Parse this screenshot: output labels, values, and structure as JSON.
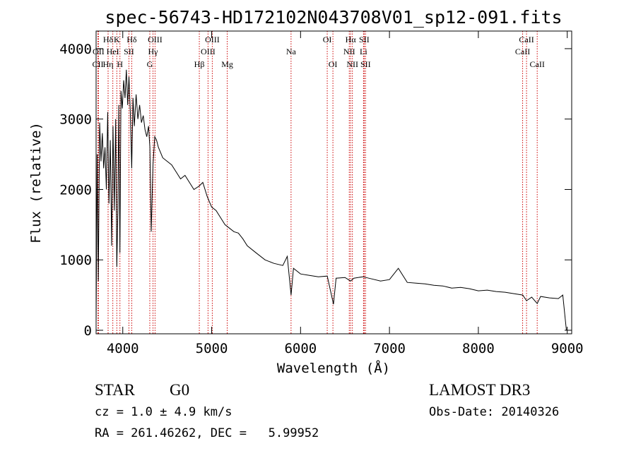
{
  "chart_data": {
    "type": "line",
    "title": "spec-56743-HD172102N043708V01_sp12-091.fits",
    "xlabel": "Wavelength (Å)",
    "ylabel": "Flux (relative)",
    "xlim": [
      3700,
      9050
    ],
    "ylim": [
      -50,
      4250
    ],
    "xticks": [
      4000,
      5000,
      6000,
      7000,
      8000,
      9000
    ],
    "yticks": [
      0,
      1000,
      2000,
      3000,
      4000
    ],
    "grid": false,
    "series": [
      {
        "name": "flux",
        "color": "#000000",
        "x": [
          3700,
          3712,
          3725,
          3740,
          3755,
          3770,
          3785,
          3800,
          3815,
          3830,
          3845,
          3860,
          3875,
          3890,
          3905,
          3920,
          3933,
          3945,
          3955,
          3968,
          3980,
          3995,
          4010,
          4025,
          4040,
          4055,
          4070,
          4085,
          4101,
          4115,
          4130,
          4150,
          4170,
          4190,
          4210,
          4230,
          4250,
          4270,
          4290,
          4305,
          4320,
          4340,
          4360,
          4380,
          4400,
          4450,
          4500,
          4550,
          4600,
          4650,
          4700,
          4750,
          4800,
          4861,
          4900,
          4950,
          5000,
          5050,
          5100,
          5150,
          5200,
          5250,
          5300,
          5350,
          5400,
          5500,
          5600,
          5700,
          5800,
          5850,
          5893,
          5920,
          6000,
          6100,
          6200,
          6300,
          6370,
          6400,
          6500,
          6563,
          6600,
          6700,
          6800,
          6900,
          7000,
          7100,
          7200,
          7300,
          7400,
          7500,
          7600,
          7700,
          7800,
          7900,
          8000,
          8100,
          8200,
          8300,
          8400,
          8500,
          8542,
          8600,
          8662,
          8700,
          8800,
          8900,
          8950,
          8990
        ],
        "y": [
          100,
          2500,
          700,
          2950,
          2400,
          2800,
          2300,
          2600,
          2000,
          3100,
          1800,
          2700,
          1200,
          2900,
          1700,
          3000,
          900,
          1700,
          3200,
          1100,
          3400,
          3150,
          3550,
          3300,
          3700,
          3200,
          3600,
          3100,
          2300,
          3300,
          2900,
          3350,
          3000,
          3200,
          2950,
          3050,
          2850,
          2750,
          2900,
          2600,
          1400,
          2350,
          2750,
          2700,
          2600,
          2450,
          2400,
          2350,
          2250,
          2150,
          2200,
          2100,
          2000,
          2050,
          2100,
          1900,
          1750,
          1700,
          1600,
          1500,
          1450,
          1400,
          1380,
          1300,
          1200,
          1100,
          1000,
          950,
          920,
          1050,
          500,
          880,
          800,
          780,
          760,
          770,
          370,
          740,
          750,
          700,
          740,
          760,
          730,
          700,
          720,
          880,
          680,
          670,
          660,
          640,
          630,
          600,
          610,
          590,
          560,
          570,
          550,
          540,
          520,
          500,
          420,
          470,
          380,
          480,
          460,
          450,
          500,
          0
        ]
      }
    ],
    "line_markers": [
      {
        "label": "Hδ",
        "x": 3835,
        "row": 1
      },
      {
        "label": "OII",
        "x": 3727,
        "row": 2
      },
      {
        "label": "CII",
        "x": 3720,
        "row": 3
      },
      {
        "label": "K",
        "x": 3933,
        "row": 1
      },
      {
        "label": "HeI",
        "x": 3888,
        "row": 2
      },
      {
        "label": "Hη",
        "x": 3835,
        "row": 3
      },
      {
        "label": "Hδ",
        "x": 4101,
        "row": 1
      },
      {
        "label": "SII",
        "x": 4069,
        "row": 2
      },
      {
        "label": "H",
        "x": 3968,
        "row": 3
      },
      {
        "label": "OIII",
        "x": 4363,
        "row": 1
      },
      {
        "label": "Hγ",
        "x": 4340,
        "row": 2
      },
      {
        "label": "G",
        "x": 4304,
        "row": 3
      },
      {
        "label": "OIII",
        "x": 5007,
        "row": 1
      },
      {
        "label": "OIII",
        "x": 4959,
        "row": 2
      },
      {
        "label": "Hβ",
        "x": 4861,
        "row": 3
      },
      {
        "label": "Mg",
        "x": 5175,
        "row": 3
      },
      {
        "label": "Na",
        "x": 5893,
        "row": 2
      },
      {
        "label": "OI",
        "x": 6300,
        "row": 1
      },
      {
        "label": "OI",
        "x": 6364,
        "row": 3
      },
      {
        "label": "Hα",
        "x": 6563,
        "row": 1
      },
      {
        "label": "NII",
        "x": 6548,
        "row": 2
      },
      {
        "label": "NII",
        "x": 6583,
        "row": 3
      },
      {
        "label": "SII",
        "x": 6716,
        "row": 1
      },
      {
        "label": "Li",
        "x": 6708,
        "row": 2
      },
      {
        "label": "SII",
        "x": 6731,
        "row": 3
      },
      {
        "label": "CaII",
        "x": 8542,
        "row": 1
      },
      {
        "label": "CaII",
        "x": 8498,
        "row": 2
      },
      {
        "label": "CaII",
        "x": 8662,
        "row": 3
      }
    ],
    "line_marker_color": "#cc0000"
  },
  "info": {
    "class_label": "STAR",
    "subclass": "G0",
    "survey": "LAMOST DR3",
    "cz": "cz = 1.0 ± 4.9 km/s",
    "obs_date": "Obs-Date: 20140326",
    "coords": "RA = 261.46262, DEC =   5.99952"
  }
}
